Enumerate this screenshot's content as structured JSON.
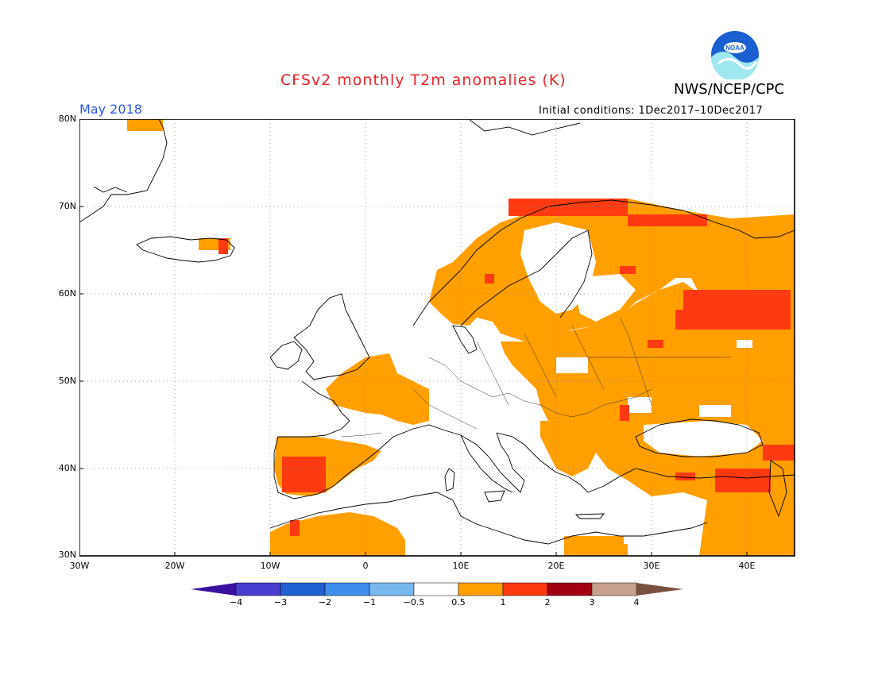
{
  "title": "CFSv2 monthly T2m anomalies (K)",
  "agency": "NWS/NCEP/CPC",
  "logo_text": "NOAA",
  "period": "May 2018",
  "initial_conditions": "Initial conditions: 1Dec2017–10Dec2017",
  "lat_ticks": [
    "80N",
    "70N",
    "60N",
    "50N",
    "40N",
    "30N"
  ],
  "lon_ticks": [
    "30W",
    "20W",
    "10W",
    "0",
    "10E",
    "20E",
    "30E",
    "40E"
  ],
  "colorbar": {
    "labels": [
      "−4",
      "−3",
      "−2",
      "−1",
      "−0.5",
      "0.5",
      "1",
      "2",
      "3",
      "4"
    ],
    "colors": [
      "#3a10a0",
      "#4a3ed0",
      "#2060d0",
      "#3c8ee8",
      "#78b8f0",
      "#ffffff",
      "#ff9f00",
      "#ff3a10",
      "#a00010",
      "#c8a090",
      "#7a5040"
    ]
  },
  "legend_meaning": {
    "orange": "0.5 to 1 K",
    "red": "1 to 2 K"
  }
}
